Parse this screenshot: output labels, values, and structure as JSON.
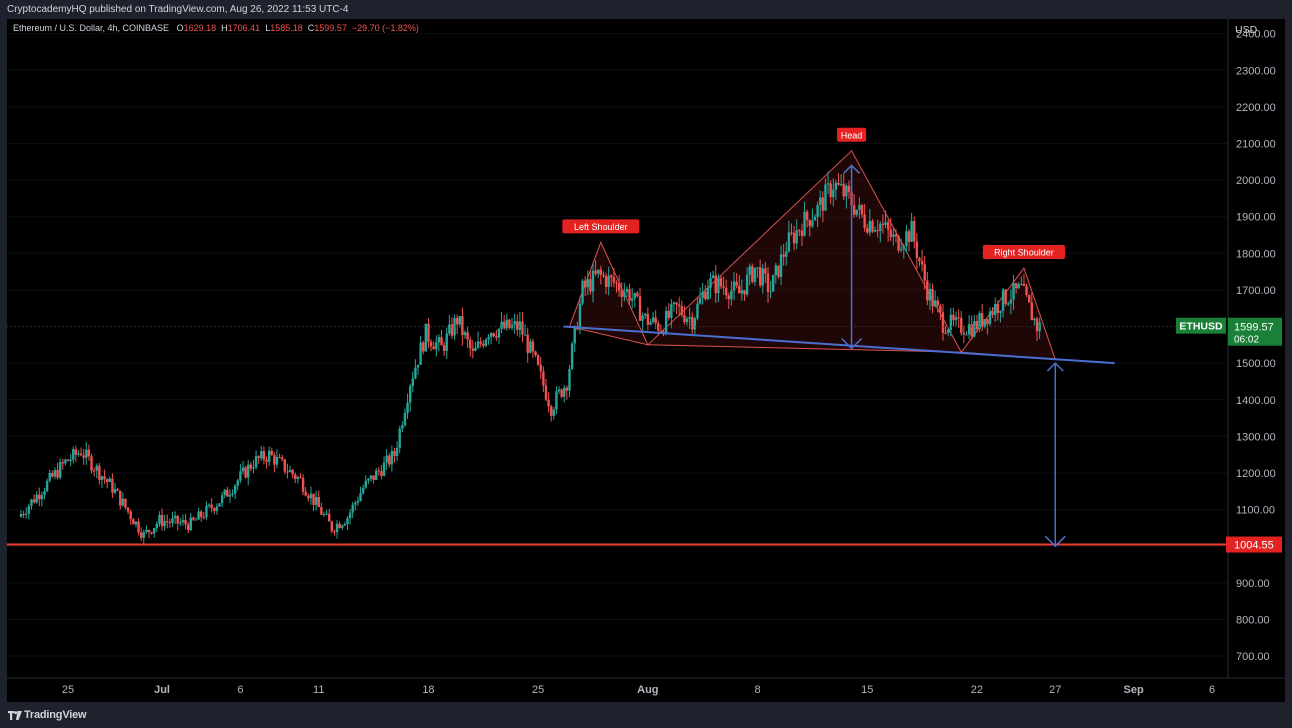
{
  "publish_line": "CryptocademyHQ published on TradingView.com, Aug 26, 2022 11:53 UTC-4",
  "footer_brand": "TradingView",
  "symbol_line": "Ethereum / U.S. Dollar, 4h, COINBASE",
  "ohlc": {
    "o_label": "O",
    "o_value": "1629.18",
    "h_label": "H",
    "h_value": "1706.41",
    "l_label": "L",
    "l_value": "1585.18",
    "c_label": "C",
    "c_value": "1599.57",
    "change": "−29.70 (−1.82%)"
  },
  "colors": {
    "background": "#000000",
    "frame": "#1e222d",
    "up": "#26a69a",
    "down": "#ef5350",
    "trendline": "#4a6fd1",
    "support": "#f23e2a",
    "badge_green": "#1a7f37",
    "badge_red": "#e42222",
    "pattern_stroke": "#d9534f",
    "pattern_fill": "#3a0d0d"
  },
  "chart_data": {
    "type": "candlestick",
    "currency_label": "USD",
    "y_ticks": [
      "700.00",
      "800.00",
      "900.00",
      "1000.00",
      "1100.00",
      "1200.00",
      "1300.00",
      "1400.00",
      "1500.00",
      "1600.00",
      "1700.00",
      "1800.00",
      "1900.00",
      "2000.00",
      "2100.00",
      "2200.00",
      "2300.00",
      "2400.00"
    ],
    "y_tick_values": [
      700,
      800,
      900,
      1000,
      1100,
      1200,
      1300,
      1400,
      1500,
      1600,
      1700,
      1800,
      1900,
      2000,
      2100,
      2200,
      2300,
      2400
    ],
    "ylim": [
      640,
      2440
    ],
    "x_axis_start": "2022-06-22",
    "x_axis_end": "2022-09-06",
    "x_ticks": [
      {
        "label": "25",
        "date": "2022-06-25"
      },
      {
        "label": "Jul",
        "date": "2022-07-01"
      },
      {
        "label": "6",
        "date": "2022-07-06"
      },
      {
        "label": "11",
        "date": "2022-07-11"
      },
      {
        "label": "18",
        "date": "2022-07-18"
      },
      {
        "label": "25",
        "date": "2022-07-25"
      },
      {
        "label": "Aug",
        "date": "2022-08-01"
      },
      {
        "label": "8",
        "date": "2022-08-08"
      },
      {
        "label": "15",
        "date": "2022-08-15"
      },
      {
        "label": "22",
        "date": "2022-08-22"
      },
      {
        "label": "27",
        "date": "2022-08-27"
      },
      {
        "label": "Sep",
        "date": "2022-09-01"
      },
      {
        "label": "6",
        "date": "2022-09-06"
      }
    ],
    "price_path": [
      [
        "2022-06-22",
        1080
      ],
      [
        "2022-06-25",
        1230
      ],
      [
        "2022-06-26",
        1260
      ],
      [
        "2022-06-28",
        1160
      ],
      [
        "2022-06-30",
        1030
      ],
      [
        "2022-07-01",
        1070
      ],
      [
        "2022-07-03",
        1060
      ],
      [
        "2022-07-05",
        1130
      ],
      [
        "2022-07-07",
        1230
      ],
      [
        "2022-07-08",
        1250
      ],
      [
        "2022-07-10",
        1180
      ],
      [
        "2022-07-12",
        1050
      ],
      [
        "2022-07-13",
        1080
      ],
      [
        "2022-07-14",
        1160
      ],
      [
        "2022-07-16",
        1250
      ],
      [
        "2022-07-17",
        1450
      ],
      [
        "2022-07-18",
        1580
      ],
      [
        "2022-07-19",
        1540
      ],
      [
        "2022-07-20",
        1620
      ],
      [
        "2022-07-21",
        1520
      ],
      [
        "2022-07-22",
        1590
      ],
      [
        "2022-07-24",
        1600
      ],
      [
        "2022-07-25",
        1500
      ],
      [
        "2022-07-26",
        1380
      ],
      [
        "2022-07-27",
        1450
      ],
      [
        "2022-07-28",
        1700
      ],
      [
        "2022-07-29",
        1740
      ],
      [
        "2022-07-30",
        1720
      ],
      [
        "2022-07-31",
        1690
      ],
      [
        "2022-08-01",
        1620
      ],
      [
        "2022-08-02",
        1600
      ],
      [
        "2022-08-03",
        1650
      ],
      [
        "2022-08-04",
        1620
      ],
      [
        "2022-08-05",
        1720
      ],
      [
        "2022-08-06",
        1710
      ],
      [
        "2022-08-07",
        1690
      ],
      [
        "2022-08-08",
        1760
      ],
      [
        "2022-08-09",
        1700
      ],
      [
        "2022-08-10",
        1820
      ],
      [
        "2022-08-11",
        1880
      ],
      [
        "2022-08-12",
        1920
      ],
      [
        "2022-08-13",
        1990
      ],
      [
        "2022-08-14",
        1950
      ],
      [
        "2022-08-15",
        1890
      ],
      [
        "2022-08-16",
        1880
      ],
      [
        "2022-08-17",
        1830
      ],
      [
        "2022-08-18",
        1860
      ],
      [
        "2022-08-19",
        1700
      ],
      [
        "2022-08-20",
        1610
      ],
      [
        "2022-08-21",
        1600
      ],
      [
        "2022-08-22",
        1600
      ],
      [
        "2022-08-23",
        1640
      ],
      [
        "2022-08-24",
        1680
      ],
      [
        "2022-08-25",
        1700
      ],
      [
        "2022-08-26",
        1600
      ]
    ],
    "last_price": {
      "symbol": "ETHUSD",
      "value": "1599.57",
      "countdown": "06:02",
      "price": 1599.57
    },
    "support_level": {
      "value": "1004.55",
      "price": 1004.55
    },
    "annotations": [
      {
        "label": "Left Shoulder",
        "date": "2022-07-29",
        "price": 1830
      },
      {
        "label": "Head",
        "date": "2022-08-14",
        "price": 2080
      },
      {
        "label": "Right Shoulder",
        "date": "2022-08-25",
        "price": 1760
      }
    ],
    "neckline": {
      "start": [
        "2022-07-27",
        1600
      ],
      "end": [
        "2022-08-29",
        1500
      ]
    },
    "pattern_triangles": [
      [
        [
          "2022-07-27",
          1600
        ],
        [
          "2022-07-29",
          1830
        ],
        [
          "2022-08-01",
          1550
        ]
      ],
      [
        [
          "2022-08-01",
          1550
        ],
        [
          "2022-08-14",
          2080
        ],
        [
          "2022-08-21",
          1530
        ]
      ],
      [
        [
          "2022-08-21",
          1530
        ],
        [
          "2022-08-25",
          1760
        ],
        [
          "2022-08-27",
          1510
        ]
      ]
    ],
    "arrows": [
      {
        "from": [
          "2022-08-14",
          2040
        ],
        "to": [
          "2022-08-14",
          1540
        ]
      },
      {
        "from": [
          "2022-08-27",
          1500
        ],
        "to": [
          "2022-08-27",
          1000
        ]
      }
    ]
  }
}
